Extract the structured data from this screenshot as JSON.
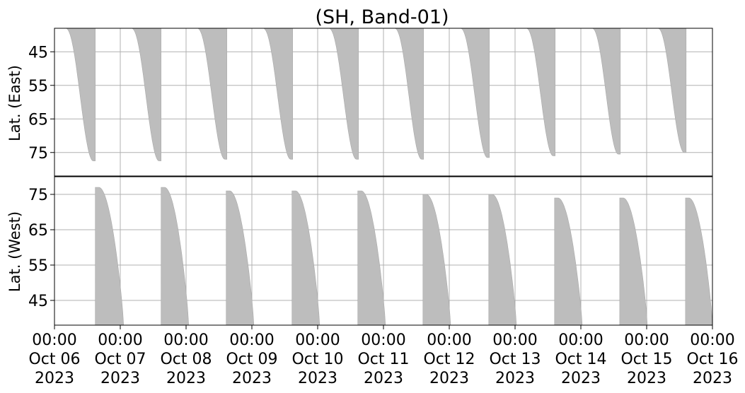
{
  "chart_data": {
    "type": "heatmap",
    "title": "(SH, Band-01)",
    "color": "#bdbdbd",
    "grid": true,
    "x_range": [
      "2023-10-06 00:00",
      "2023-10-16 00:00"
    ],
    "x_tick_labels": [
      [
        "00:00",
        "Oct 06",
        "2023"
      ],
      [
        "00:00",
        "Oct 07",
        "2023"
      ],
      [
        "00:00",
        "Oct 08",
        "2023"
      ],
      [
        "00:00",
        "Oct 09",
        "2023"
      ],
      [
        "00:00",
        "Oct 10",
        "2023"
      ],
      [
        "00:00",
        "Oct 11",
        "2023"
      ],
      [
        "00:00",
        "Oct 12",
        "2023"
      ],
      [
        "00:00",
        "Oct 13",
        "2023"
      ],
      [
        "00:00",
        "Oct 14",
        "2023"
      ],
      [
        "00:00",
        "Oct 15",
        "2023"
      ],
      [
        "00:00",
        "Oct 16",
        "2023"
      ]
    ],
    "panels": [
      {
        "name": "east",
        "ylabel": "Lat. (East)",
        "ylim": [
          38,
          82
        ],
        "inverted": true,
        "yticks": [
          45,
          55,
          65,
          75
        ],
        "coverage": [
          {
            "start": 0.17,
            "end": 0.62,
            "min_lat": 38,
            "max_lat": 77.5
          },
          {
            "start": 1.17,
            "end": 1.62,
            "min_lat": 38,
            "max_lat": 77.5
          },
          {
            "start": 2.17,
            "end": 2.62,
            "min_lat": 38,
            "max_lat": 77
          },
          {
            "start": 3.17,
            "end": 3.62,
            "min_lat": 38,
            "max_lat": 77
          },
          {
            "start": 4.17,
            "end": 4.62,
            "min_lat": 38,
            "max_lat": 77
          },
          {
            "start": 5.17,
            "end": 5.61,
            "min_lat": 38,
            "max_lat": 77
          },
          {
            "start": 6.17,
            "end": 6.61,
            "min_lat": 38,
            "max_lat": 76.5
          },
          {
            "start": 7.17,
            "end": 7.61,
            "min_lat": 38,
            "max_lat": 76
          },
          {
            "start": 8.17,
            "end": 8.6,
            "min_lat": 38,
            "max_lat": 75.5
          },
          {
            "start": 9.17,
            "end": 9.6,
            "min_lat": 38,
            "max_lat": 75
          }
        ]
      },
      {
        "name": "west",
        "ylabel": "Lat. (West)",
        "ylim": [
          38,
          80
        ],
        "inverted": false,
        "yticks": [
          45,
          55,
          65,
          75
        ],
        "coverage": [
          {
            "start": 0.62,
            "end": 1.05,
            "min_lat": 38,
            "max_lat": 77
          },
          {
            "start": 1.62,
            "end": 2.04,
            "min_lat": 38,
            "max_lat": 77
          },
          {
            "start": 2.61,
            "end": 3.03,
            "min_lat": 38,
            "max_lat": 76
          },
          {
            "start": 3.61,
            "end": 4.03,
            "min_lat": 38,
            "max_lat": 76
          },
          {
            "start": 4.61,
            "end": 5.03,
            "min_lat": 38,
            "max_lat": 76
          },
          {
            "start": 5.6,
            "end": 6.02,
            "min_lat": 38,
            "max_lat": 75
          },
          {
            "start": 6.6,
            "end": 7.02,
            "min_lat": 38,
            "max_lat": 75
          },
          {
            "start": 7.6,
            "end": 8.02,
            "min_lat": 38,
            "max_lat": 74
          },
          {
            "start": 8.59,
            "end": 9.01,
            "min_lat": 38,
            "max_lat": 74
          },
          {
            "start": 9.59,
            "end": 10.0,
            "min_lat": 38,
            "max_lat": 74
          }
        ]
      }
    ]
  }
}
